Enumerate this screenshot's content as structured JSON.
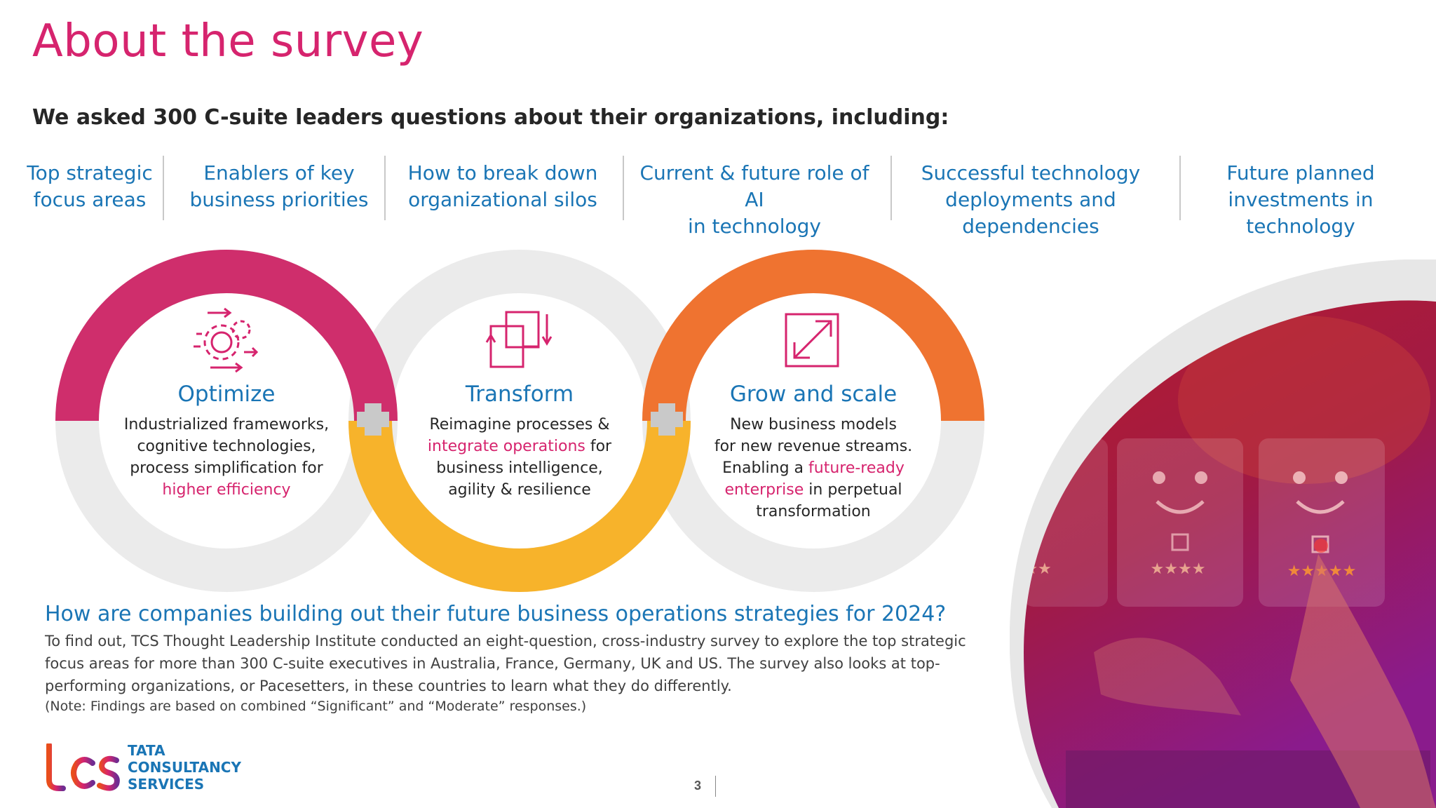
{
  "header": {
    "title": "About the survey",
    "subtitle": "We asked 300 C-suite leaders questions about their organizations, including:"
  },
  "topics": [
    {
      "line1": "Top strategic",
      "line2": "focus areas",
      "line3": ""
    },
    {
      "line1": "Enablers of key",
      "line2": "business priorities",
      "line3": ""
    },
    {
      "line1": "How to break down",
      "line2": "organizational silos",
      "line3": ""
    },
    {
      "line1": "Current & future role of AI",
      "line2": "in technology",
      "line3": ""
    },
    {
      "line1": "Successful technology",
      "line2": "deployments and",
      "line3": "dependencies"
    },
    {
      "line1": "Future planned",
      "line2": "investments in",
      "line3": "technology"
    }
  ],
  "rings": [
    {
      "label": "Optimize",
      "icon": "gears-arrows-icon",
      "color": "#cf2e6c",
      "lines": [
        "Industrialized frameworks,",
        "cognitive technologies,",
        "process simplification for"
      ],
      "highlight": "higher efficiency"
    },
    {
      "label": "Transform",
      "icon": "transform-squares-icon",
      "color": "#f7b32b",
      "line1": "Reimagine processes &",
      "highlight": "integrate operations",
      "after_highlight": " for",
      "lines": [
        "business intelligence,",
        "agility & resilience"
      ]
    },
    {
      "label": "Grow and scale",
      "icon": "expand-arrow-icon",
      "color": "#ef7330",
      "lines": [
        "New business models",
        "for new revenue streams."
      ],
      "before_highlight": "Enabling a ",
      "highlight1": "future-ready",
      "highlight2": "enterprise",
      "after_highlight": " in perpetual",
      "last_line": "transformation"
    }
  ],
  "footer": {
    "question": "How are companies building out their future business operations strategies for 2024?",
    "description": "To find out, TCS Thought Leadership Institute conducted an eight-question, cross-industry survey to explore the top strategic focus areas for more than 300 C-suite executives in Australia, France, Germany, UK and US. The survey also looks at top-performing organizations, or Pacesetters, in these countries to learn what they do differently.",
    "note": "(Note: Findings are based on combined “Significant” and “Moderate” responses.)",
    "page_number": "3"
  },
  "logo": {
    "mark": "tcs",
    "line1": "TATA",
    "line2": "CONSULTANCY",
    "line3": "SERVICES"
  },
  "photo": {
    "rating_cards": [
      "★★",
      "★★★★",
      "★★★★★"
    ]
  },
  "colors": {
    "accent": "#d6246e",
    "blue": "#1a75b5",
    "orange": "#ef7330",
    "yellow": "#f7b32b",
    "grey_ring": "#ececec"
  }
}
